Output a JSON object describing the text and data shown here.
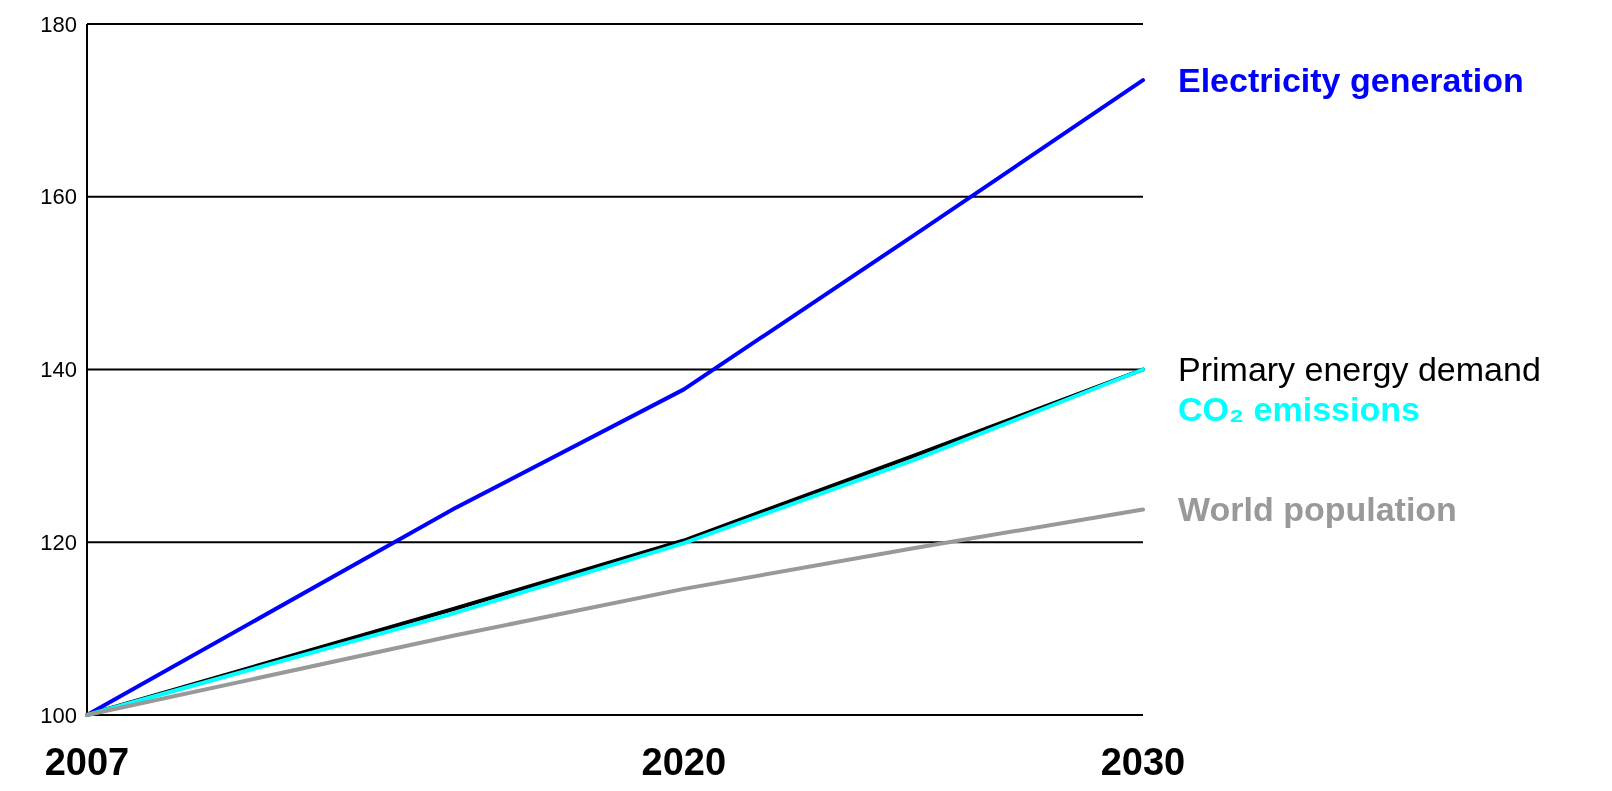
{
  "chart_data": {
    "type": "line",
    "x": [
      2007,
      2015,
      2020,
      2025,
      2030
    ],
    "xlim": [
      2007,
      2030
    ],
    "xticks": [
      2007,
      2020,
      2030
    ],
    "ylim": [
      100,
      180
    ],
    "yticks": [
      100,
      120,
      140,
      160,
      180
    ],
    "grid": "y",
    "marker": "none",
    "line_style": "solid",
    "series": [
      {
        "name": "Electricity generation",
        "color": "#0000ff",
        "values": [
          100,
          123.9,
          137.7,
          155.5,
          173.5
        ]
      },
      {
        "name": "Primary energy demand",
        "color": "#000000",
        "values": [
          100,
          112.3,
          120.2,
          130,
          140
        ]
      },
      {
        "name": "CO₂ emissions",
        "color": "#00ffff",
        "values": [
          100,
          111.8,
          119.9,
          129.5,
          140
        ]
      },
      {
        "name": "World population",
        "color": "#999999",
        "values": [
          100,
          109.2,
          114.6,
          119.3,
          123.8
        ]
      }
    ]
  }
}
